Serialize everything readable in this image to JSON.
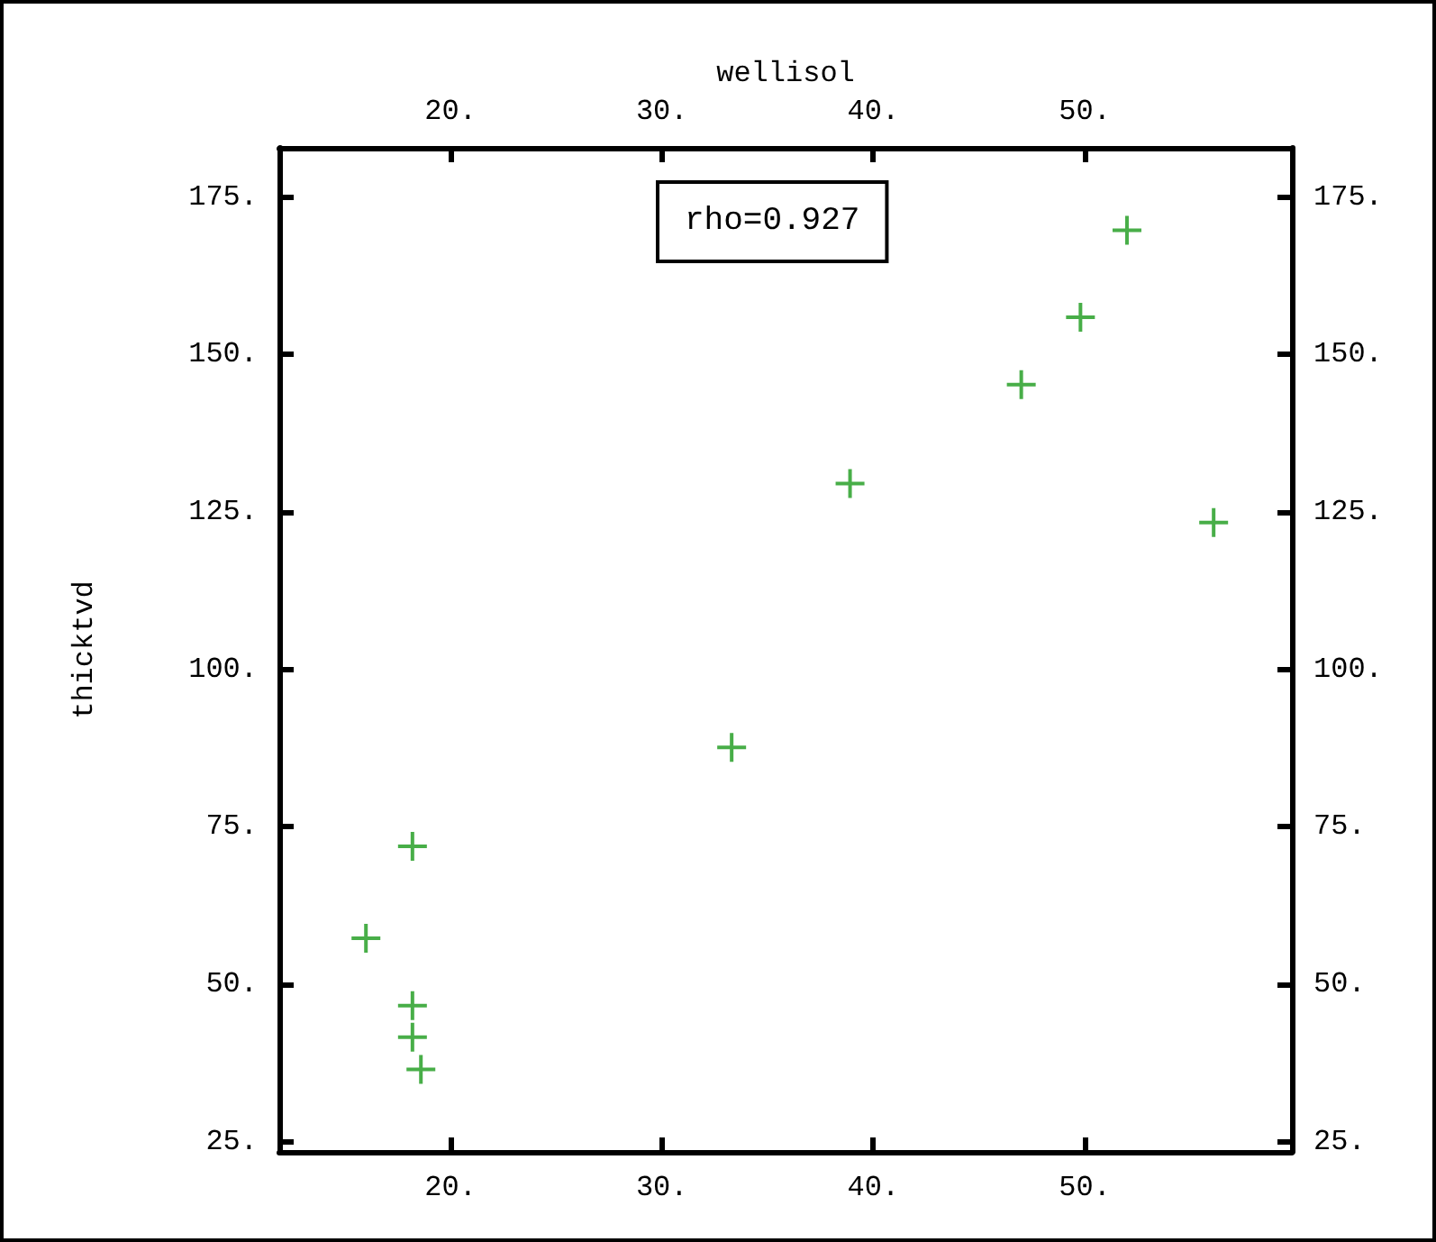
{
  "chart_data": {
    "type": "scatter",
    "xlabel": "wellisol",
    "ylabel": "thicktvd",
    "annotations": [
      "rho=0.927"
    ],
    "x": [
      16.0,
      18.2,
      18.2,
      18.2,
      18.6,
      33.3,
      38.9,
      47.0,
      49.8,
      52.0,
      56.1
    ],
    "series": [
      {
        "color": "#1a9a1a",
        "values": [
          57.3,
          71.9,
          46.6,
          41.6,
          36.5,
          87.6,
          129.5,
          145.2,
          155.9,
          169.7,
          123.3
        ]
      }
    ],
    "xlim": [
      11.9,
      59.8
    ],
    "xticks": [
      {
        "value": 20,
        "label": "20."
      },
      {
        "value": 30,
        "label": "30."
      },
      {
        "value": 40,
        "label": "40."
      },
      {
        "value": 50,
        "label": "50."
      }
    ],
    "x2lim": [
      11.9,
      59.8
    ],
    "x2ticks": [
      {
        "value": 20,
        "label": "20."
      },
      {
        "value": 30,
        "label": "30."
      },
      {
        "value": 40,
        "label": "40."
      },
      {
        "value": 50,
        "label": "50."
      }
    ],
    "ylim": [
      23.4,
      182.8
    ],
    "yticks": [
      {
        "value": 25,
        "label": "25."
      },
      {
        "value": 50,
        "label": "50."
      },
      {
        "value": 75,
        "label": "75."
      },
      {
        "value": 100,
        "label": "100."
      },
      {
        "value": 125,
        "label": "125."
      },
      {
        "value": 150,
        "label": "150."
      },
      {
        "value": 175,
        "label": "175."
      }
    ],
    "y2lim": [
      23.4,
      182.8
    ],
    "y2ticks": [
      {
        "value": 25,
        "label": "25."
      },
      {
        "value": 50,
        "label": "50."
      },
      {
        "value": 75,
        "label": "75."
      },
      {
        "value": 100,
        "label": "100."
      },
      {
        "value": 125,
        "label": "125."
      },
      {
        "value": 150,
        "label": "150."
      },
      {
        "value": 175,
        "label": "175."
      }
    ],
    "marker": "cross"
  }
}
